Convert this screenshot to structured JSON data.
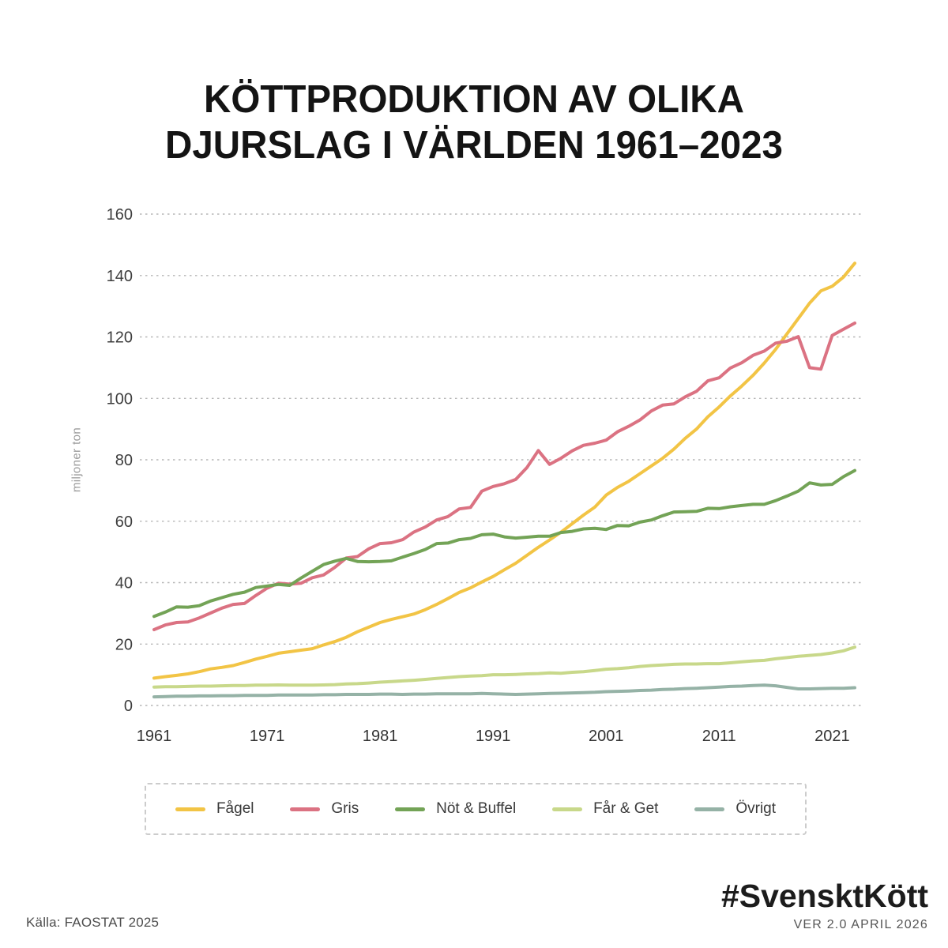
{
  "title": {
    "line1": "KÖTTPRODUKTION AV OLIKA",
    "line2": "DJURSLAG I VÄRLDEN 1961–2023"
  },
  "footer": {
    "source": "Källa: FAOSTAT 2025",
    "hashtag": "#SvensktKött",
    "version": "VER 2.0 APRIL 2026"
  },
  "chart_data": {
    "type": "line",
    "title": "Köttproduktion av olika djurslag i världen 1961–2023",
    "xlabel": "",
    "ylabel": "miljoner ton",
    "ylim": [
      0,
      160
    ],
    "x_range": [
      1961,
      2023
    ],
    "yticks": [
      0,
      20,
      40,
      60,
      80,
      100,
      120,
      140,
      160
    ],
    "xticks": [
      1961,
      1971,
      1981,
      1991,
      2001,
      2011,
      2021
    ],
    "grid": "horizontal dashed",
    "legend_position": "bottom",
    "years": [
      1961,
      1962,
      1963,
      1964,
      1965,
      1966,
      1967,
      1968,
      1969,
      1970,
      1971,
      1972,
      1973,
      1974,
      1975,
      1976,
      1977,
      1978,
      1979,
      1980,
      1981,
      1982,
      1983,
      1984,
      1985,
      1986,
      1987,
      1988,
      1989,
      1990,
      1991,
      1992,
      1993,
      1994,
      1995,
      1996,
      1997,
      1998,
      1999,
      2000,
      2001,
      2002,
      2003,
      2004,
      2005,
      2006,
      2007,
      2008,
      2009,
      2010,
      2011,
      2012,
      2013,
      2014,
      2015,
      2016,
      2017,
      2018,
      2019,
      2020,
      2021,
      2022,
      2023
    ],
    "series": [
      {
        "id": "fagel",
        "name": "Fågel",
        "color": "#F2C445",
        "values": [
          8.9,
          9.4,
          9.8,
          10.3,
          11.0,
          11.9,
          12.4,
          13.0,
          14.0,
          15.1,
          16.0,
          17.0,
          17.5,
          18.0,
          18.5,
          19.7,
          20.8,
          22.2,
          24.0,
          25.5,
          27.0,
          28.0,
          28.9,
          29.8,
          31.2,
          32.9,
          34.8,
          36.8,
          38.3,
          40.2,
          42.0,
          44.2,
          46.3,
          48.9,
          51.5,
          53.9,
          56.4,
          59.2,
          62.0,
          64.6,
          68.5,
          71.0,
          73.0,
          75.5,
          78.0,
          80.5,
          83.5,
          87.0,
          90.0,
          94.0,
          97.2,
          100.8,
          104.0,
          107.5,
          111.5,
          116.0,
          121.0,
          126.0,
          131.0,
          135.0,
          136.5,
          139.5,
          144.0
        ]
      },
      {
        "id": "gris",
        "name": "Gris",
        "color": "#DB7282",
        "values": [
          24.7,
          26.2,
          27.0,
          27.2,
          28.5,
          30.1,
          31.7,
          32.9,
          33.2,
          35.8,
          38.2,
          39.8,
          39.5,
          39.8,
          41.6,
          42.5,
          45.0,
          48.0,
          48.5,
          51.0,
          52.7,
          53.0,
          54.0,
          56.5,
          58.1,
          60.4,
          61.5,
          64.0,
          64.5,
          69.8,
          71.3,
          72.2,
          73.6,
          77.5,
          83.0,
          78.5,
          80.5,
          82.9,
          84.7,
          85.4,
          86.4,
          89.1,
          90.9,
          93.0,
          95.9,
          97.8,
          98.2,
          100.5,
          102.3,
          105.7,
          106.7,
          109.9,
          111.6,
          114.0,
          115.4,
          118.0,
          118.6,
          120.1,
          110.0,
          109.5,
          120.5,
          122.5,
          124.5
        ]
      },
      {
        "id": "not-buffel",
        "name": "Nöt & Buffel",
        "color": "#73A356",
        "values": [
          29.0,
          30.4,
          32.1,
          32.0,
          32.5,
          34.0,
          35.1,
          36.2,
          36.9,
          38.4,
          38.9,
          39.4,
          39.1,
          41.5,
          43.7,
          45.9,
          47.0,
          47.9,
          46.9,
          46.8,
          46.9,
          47.1,
          48.3,
          49.5,
          50.8,
          52.7,
          52.9,
          54.0,
          54.4,
          55.6,
          55.8,
          54.9,
          54.5,
          54.8,
          55.1,
          55.1,
          56.3,
          56.7,
          57.5,
          57.7,
          57.3,
          58.6,
          58.5,
          59.7,
          60.4,
          61.8,
          63.0,
          63.1,
          63.2,
          64.2,
          64.1,
          64.7,
          65.1,
          65.5,
          65.5,
          66.7,
          68.2,
          69.8,
          72.5,
          71.8,
          72.0,
          74.5,
          76.5
        ]
      },
      {
        "id": "far-get",
        "name": "Får & Get",
        "color": "#C8D88A",
        "values": [
          6.0,
          6.1,
          6.1,
          6.2,
          6.3,
          6.3,
          6.4,
          6.5,
          6.5,
          6.6,
          6.6,
          6.7,
          6.6,
          6.6,
          6.6,
          6.7,
          6.8,
          7.0,
          7.1,
          7.3,
          7.6,
          7.8,
          8.0,
          8.2,
          8.5,
          8.8,
          9.1,
          9.4,
          9.6,
          9.7,
          10.0,
          10.0,
          10.1,
          10.3,
          10.4,
          10.6,
          10.5,
          10.8,
          11.0,
          11.4,
          11.8,
          12.0,
          12.3,
          12.7,
          13.0,
          13.2,
          13.4,
          13.5,
          13.5,
          13.6,
          13.6,
          13.9,
          14.2,
          14.5,
          14.7,
          15.2,
          15.6,
          16.0,
          16.3,
          16.6,
          17.1,
          17.8,
          19.0
        ]
      },
      {
        "id": "ovrigt",
        "name": "Övrigt",
        "color": "#95B2A6",
        "values": [
          2.8,
          2.9,
          3.0,
          3.0,
          3.1,
          3.1,
          3.2,
          3.2,
          3.3,
          3.3,
          3.3,
          3.4,
          3.4,
          3.4,
          3.4,
          3.5,
          3.5,
          3.6,
          3.6,
          3.6,
          3.7,
          3.7,
          3.6,
          3.7,
          3.7,
          3.8,
          3.8,
          3.8,
          3.8,
          3.9,
          3.8,
          3.7,
          3.6,
          3.7,
          3.8,
          3.9,
          4.0,
          4.1,
          4.2,
          4.3,
          4.5,
          4.6,
          4.7,
          4.9,
          5.0,
          5.2,
          5.3,
          5.5,
          5.6,
          5.8,
          6.0,
          6.2,
          6.3,
          6.5,
          6.6,
          6.4,
          5.9,
          5.4,
          5.4,
          5.5,
          5.6,
          5.6,
          5.8
        ]
      }
    ]
  }
}
